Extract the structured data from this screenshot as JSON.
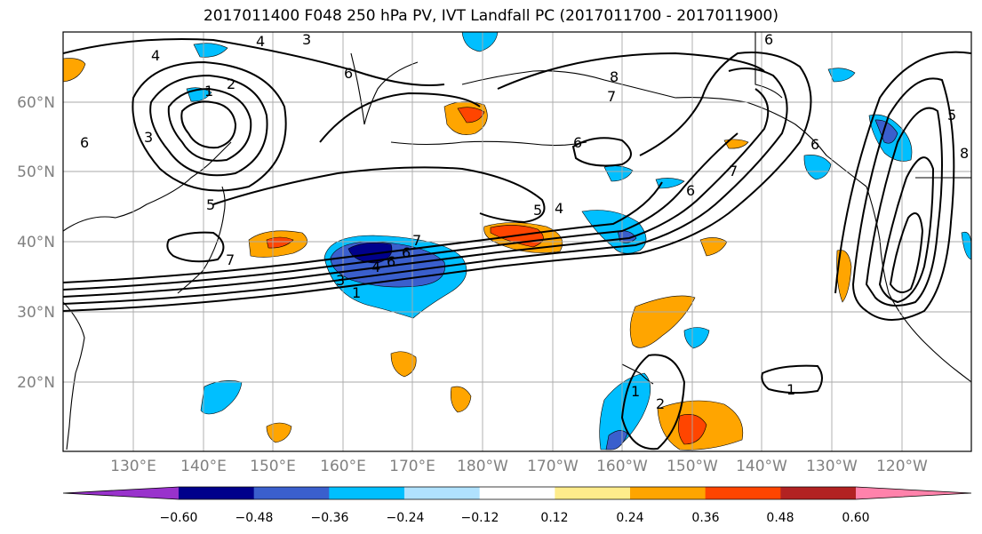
{
  "title": "2017011400 F048 250 hPa PV, IVT Landfall PC (2017011700 - 2017011900)",
  "lat_labels": [
    "20°N",
    "30°N",
    "40°N",
    "50°N",
    "60°N"
  ],
  "lon_labels": [
    "130°E",
    "140°E",
    "150°E",
    "160°E",
    "170°E",
    "180°W",
    "170°W",
    "160°W",
    "150°W",
    "140°W",
    "130°W",
    "120°W"
  ],
  "colorbar": {
    "ticks": [
      "−0.60",
      "−0.48",
      "−0.36",
      "−0.24",
      "−0.12",
      "0.12",
      "0.24",
      "0.36",
      "0.48",
      "0.60"
    ],
    "colors": [
      "#9932CC",
      "#00008B",
      "#3A5FCD",
      "#00BFFF",
      "#B0E2FF",
      "#FFFFFF",
      "#FFEC8B",
      "#FFA500",
      "#FF4500",
      "#B22222",
      "#FF82AB"
    ]
  },
  "contour_labels": [
    "4",
    "3",
    "1",
    "2",
    "3",
    "6",
    "5",
    "6",
    "4",
    "6",
    "7",
    "7",
    "6",
    "4",
    "3",
    "1",
    "5",
    "4",
    "6",
    "7",
    "6",
    "7",
    "5",
    "8",
    "6",
    "1",
    "2",
    "1",
    "8",
    "6"
  ]
}
